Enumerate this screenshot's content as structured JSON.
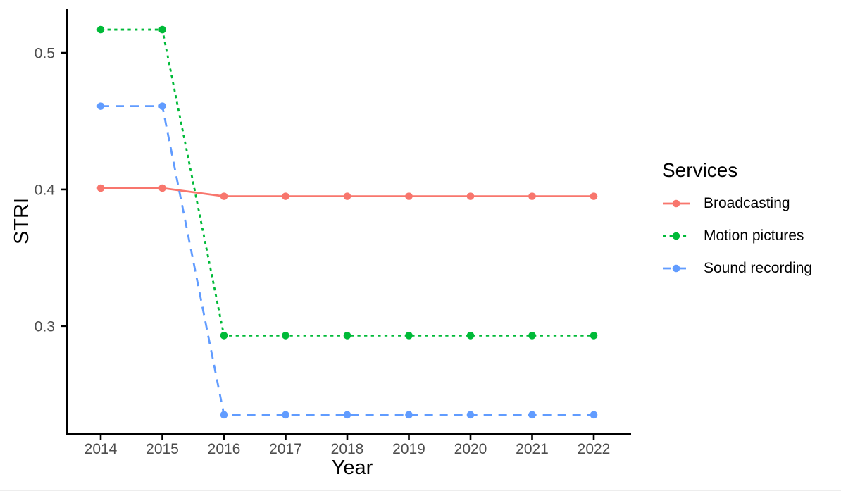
{
  "chart_data": {
    "type": "line",
    "title": "",
    "xlabel": "Year",
    "ylabel": "STRI",
    "legend_title": "Services",
    "legend_position": "right",
    "grid": false,
    "background": "#ffffff",
    "axis_color": "#000000",
    "tick_label_color": "#4d4d4d",
    "categories": [
      "2014",
      "2015",
      "2016",
      "2017",
      "2018",
      "2019",
      "2020",
      "2021",
      "2022"
    ],
    "yticks": [
      0.3,
      0.4,
      0.5
    ],
    "ylim": [
      0.221,
      0.532
    ],
    "series": [
      {
        "name": "Broadcasting",
        "color": "#F8766D",
        "linestyle": "solid",
        "marker": "circle",
        "values": [
          0.401,
          0.401,
          0.395,
          0.395,
          0.395,
          0.395,
          0.395,
          0.395,
          0.395
        ]
      },
      {
        "name": "Motion pictures",
        "color": "#00BA38",
        "linestyle": "dotted",
        "marker": "circle",
        "values": [
          0.517,
          0.517,
          0.293,
          0.293,
          0.293,
          0.293,
          0.293,
          0.293,
          0.293
        ]
      },
      {
        "name": "Sound recording",
        "color": "#619CFF",
        "linestyle": "dashed",
        "marker": "circle",
        "values": [
          0.461,
          0.461,
          0.235,
          0.235,
          0.235,
          0.235,
          0.235,
          0.235,
          0.235
        ]
      }
    ]
  }
}
